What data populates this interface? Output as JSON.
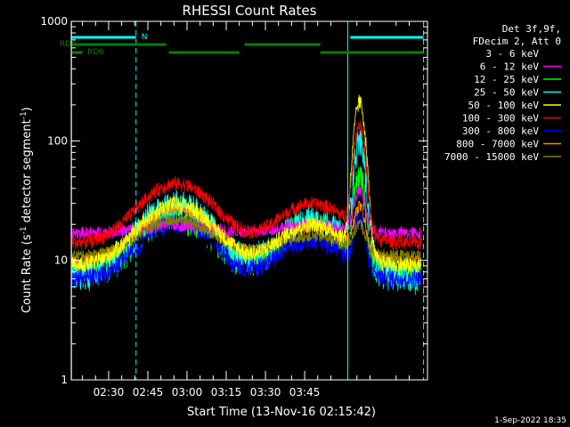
{
  "chart_data": {
    "type": "line",
    "title": "RHESSI Count Rates",
    "xlabel": "Start Time (13-Nov-16 02:15:42)",
    "ylabel_main": "Count Rate (s",
    "ylabel_sup1": "-1",
    "ylabel_mid": " detector segment",
    "ylabel_sup2": "-1",
    "ylabel_end": ")",
    "yscale": "log",
    "ylim": [
      1,
      1000
    ],
    "xlim_minutes": [
      15.7,
      152
    ],
    "x_ticks": [
      {
        "m": 30,
        "label": "02:30"
      },
      {
        "m": 45,
        "label": "02:45"
      },
      {
        "m": 60,
        "label": "03:00"
      },
      {
        "m": 75,
        "label": "03:15"
      },
      {
        "m": 90,
        "label": "03:30"
      },
      {
        "m": 105,
        "label": "03:45"
      }
    ],
    "y_ticks": [
      {
        "v": 1,
        "label": "1"
      },
      {
        "v": 10,
        "label": "10"
      },
      {
        "v": 100,
        "label": "100"
      },
      {
        "v": 1000,
        "label": "1000"
      }
    ],
    "legend_header": [
      "Det 3f,9f,",
      "FDecim 2, Att 0"
    ],
    "legend_entries": [
      {
        "label": "3 - 6 keV",
        "color": "#000000"
      },
      {
        "label": "6 - 12 keV",
        "color": "#ff00ff"
      },
      {
        "label": "12 - 25 keV",
        "color": "#00ff00"
      },
      {
        "label": "25 - 50 keV",
        "color": "#00ffff"
      },
      {
        "label": "50 - 100 keV",
        "color": "#ffff00"
      },
      {
        "label": "100 - 300 keV",
        "color": "#ff0000"
      },
      {
        "label": "300 - 800 keV",
        "color": "#0000ff"
      },
      {
        "label": "800 - 7000 keV",
        "color": "#ff8c00"
      },
      {
        "label": "7000 - 15000 keV",
        "color": "#808000"
      }
    ],
    "flag_labels": {
      "n": "N",
      "rd0": "RD0",
      "rd6": "RD6"
    },
    "flag_bars": {
      "night": [
        [
          15.7,
          40.5
        ],
        [
          122.5,
          150.5
        ]
      ],
      "rd0": [
        [
          15.7,
          52
        ],
        [
          82,
          111
        ]
      ],
      "rd6": [
        [
          15.7,
          20
        ],
        [
          53,
          80
        ],
        [
          111,
          150.5
        ]
      ]
    },
    "flag_colors": {
      "night": "#00ffff",
      "rd": "#008000"
    },
    "eclipse_lines_solid": [
      15.8,
      121.5
    ],
    "eclipse_lines_dashed": [
      40.5,
      150.5
    ],
    "series_profiles": [
      {
        "band": "3 - 6 keV",
        "q": 16,
        "p1": 13,
        "p2": 17,
        "flare": 2,
        "noise": 0.1
      },
      {
        "band": "6 - 12 keV",
        "q": 17,
        "p1": 20,
        "p2": 20,
        "flare": 22,
        "noise": 0.09
      },
      {
        "band": "12 - 25 keV",
        "q": 8,
        "p1": 24,
        "p2": 20,
        "flare": 40,
        "noise": 0.22
      },
      {
        "band": "25 - 50 keV",
        "q": 7.5,
        "p1": 30,
        "p2": 22,
        "flare": 90,
        "noise": 0.22
      },
      {
        "band": "50 - 100 keV",
        "q": 9,
        "p1": 30,
        "p2": 20,
        "flare": 200,
        "noise": 0.12
      },
      {
        "band": "100 - 300 keV",
        "q": 14,
        "p1": 44,
        "p2": 30,
        "flare": 120,
        "noise": 0.1
      },
      {
        "band": "300 - 800 keV",
        "q": 7,
        "p1": 21,
        "p2": 15,
        "flare": 14,
        "noise": 0.14
      },
      {
        "band": "800 - 7000 keV",
        "q": 10,
        "p1": 27,
        "p2": 19,
        "flare": 16,
        "noise": 0.09
      },
      {
        "band": "7000 - 15000 keV",
        "q": 11,
        "p1": 22,
        "p2": 16,
        "flare": 8,
        "noise": 0.08
      }
    ],
    "footer_date": "1-Sep-2022 18:35"
  }
}
